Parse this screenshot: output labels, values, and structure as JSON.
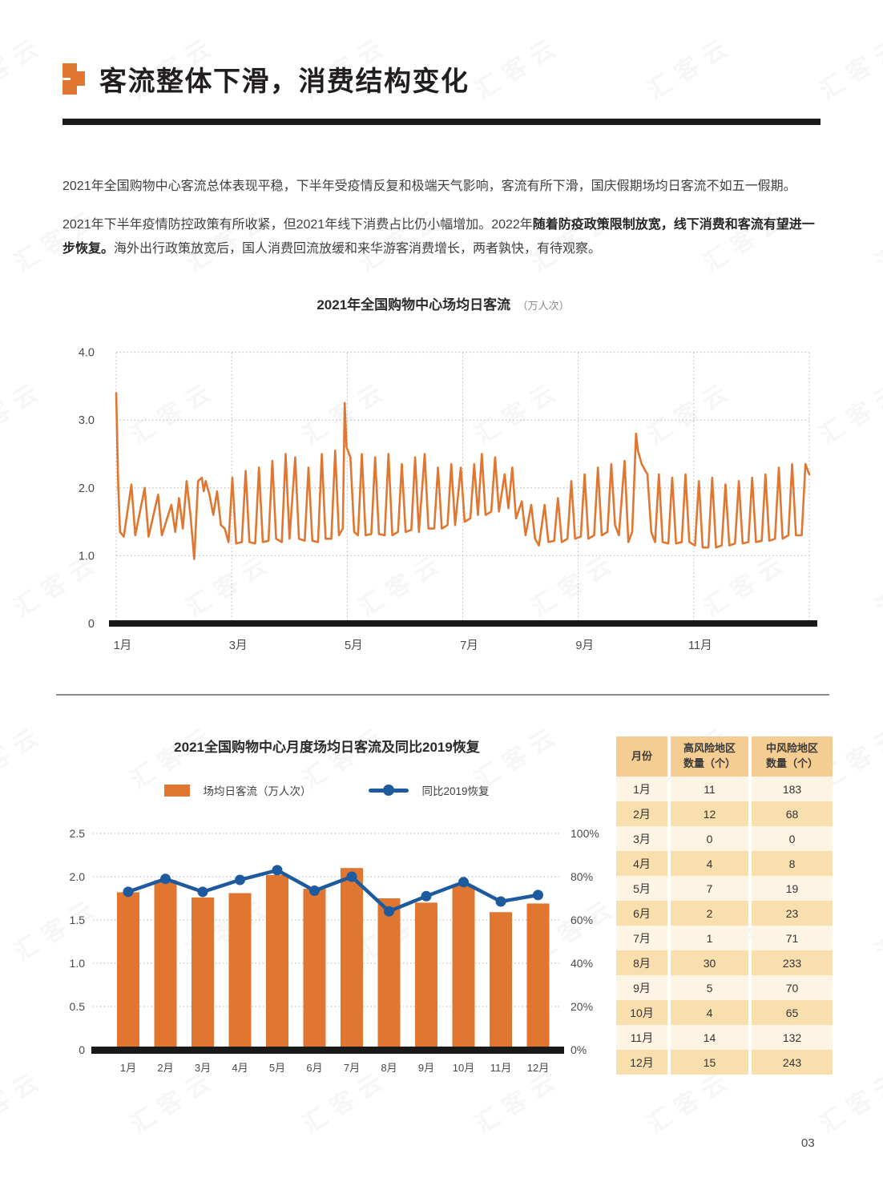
{
  "page": {
    "number": "03",
    "watermark_text": "汇客云"
  },
  "header": {
    "title": "客流整体下滑，消费结构变化"
  },
  "paragraphs": {
    "p1": "2021年全国购物中心客流总体表现平稳，下半年受疫情反复和极端天气影响，客流有所下滑，国庆假期场均日客流不如五一假期。",
    "p2_normal1": "2021年下半年疫情防控政策有所收紧，但2021年线下消费占比仍小幅增加。2022年",
    "p2_bold": "随着防疫政策限制放宽，线下消费和客流有望进一步恢复。",
    "p2_normal2": "海外出行政策放宽后，国人消费回流放缓和来华游客消费增长，两者孰快，有待观察。"
  },
  "colors": {
    "accent_orange": "#E0762F",
    "line_blue": "#1E5B9E",
    "axis_black": "#1A1A1A",
    "grid_gray": "#B5B5B5",
    "tick_text": "#4A4A4A"
  },
  "chart_data": [
    {
      "type": "line",
      "title": "2021年全国购物中心场均日客流",
      "unit": "（万人次）",
      "series_name": "场均日客流",
      "x_tick_labels": [
        "1月",
        "3月",
        "5月",
        "7月",
        "9月",
        "11月"
      ],
      "y_tick_labels": [
        "0",
        "1.0",
        "2.0",
        "3.0",
        "4.0"
      ],
      "ylim": [
        0,
        4.0
      ],
      "x_range_days": [
        0,
        364
      ],
      "grid": true,
      "points": [
        [
          0,
          3.4
        ],
        [
          1,
          2.1
        ],
        [
          2,
          1.35
        ],
        [
          4,
          1.28
        ],
        [
          8,
          2.05
        ],
        [
          10,
          1.3
        ],
        [
          15,
          2.0
        ],
        [
          17,
          1.28
        ],
        [
          22,
          1.9
        ],
        [
          24,
          1.3
        ],
        [
          29,
          1.75
        ],
        [
          31,
          1.35
        ],
        [
          33,
          1.85
        ],
        [
          35,
          1.4
        ],
        [
          37,
          2.1
        ],
        [
          39,
          1.6
        ],
        [
          41,
          0.95
        ],
        [
          43,
          2.1
        ],
        [
          45,
          2.15
        ],
        [
          46,
          1.95
        ],
        [
          47,
          2.1
        ],
        [
          49,
          1.9
        ],
        [
          51,
          1.6
        ],
        [
          53,
          1.95
        ],
        [
          55,
          1.45
        ],
        [
          57,
          1.4
        ],
        [
          59,
          1.2
        ],
        [
          61,
          2.15
        ],
        [
          63,
          1.18
        ],
        [
          66,
          1.2
        ],
        [
          68,
          2.25
        ],
        [
          70,
          1.2
        ],
        [
          73,
          1.18
        ],
        [
          75,
          2.3
        ],
        [
          77,
          1.2
        ],
        [
          80,
          1.22
        ],
        [
          82,
          2.4
        ],
        [
          84,
          1.25
        ],
        [
          87,
          1.2
        ],
        [
          89,
          2.5
        ],
        [
          91,
          1.25
        ],
        [
          94,
          2.45
        ],
        [
          96,
          1.25
        ],
        [
          99,
          1.22
        ],
        [
          101,
          2.3
        ],
        [
          103,
          1.22
        ],
        [
          106,
          1.2
        ],
        [
          108,
          2.5
        ],
        [
          110,
          1.25
        ],
        [
          113,
          1.25
        ],
        [
          115,
          2.55
        ],
        [
          117,
          1.3
        ],
        [
          119,
          1.4
        ],
        [
          120,
          3.25
        ],
        [
          121,
          2.6
        ],
        [
          123,
          2.45
        ],
        [
          125,
          1.35
        ],
        [
          127,
          1.3
        ],
        [
          129,
          2.5
        ],
        [
          131,
          1.3
        ],
        [
          134,
          1.32
        ],
        [
          136,
          2.45
        ],
        [
          138,
          1.32
        ],
        [
          141,
          1.3
        ],
        [
          143,
          2.5
        ],
        [
          145,
          1.3
        ],
        [
          148,
          1.35
        ],
        [
          150,
          2.35
        ],
        [
          152,
          1.35
        ],
        [
          155,
          1.38
        ],
        [
          157,
          2.45
        ],
        [
          159,
          1.35
        ],
        [
          162,
          2.5
        ],
        [
          164,
          1.4
        ],
        [
          167,
          1.4
        ],
        [
          169,
          2.3
        ],
        [
          171,
          1.4
        ],
        [
          174,
          1.45
        ],
        [
          176,
          2.35
        ],
        [
          178,
          1.45
        ],
        [
          181,
          2.3
        ],
        [
          183,
          1.5
        ],
        [
          186,
          1.55
        ],
        [
          188,
          2.35
        ],
        [
          190,
          1.6
        ],
        [
          192,
          2.5
        ],
        [
          194,
          1.6
        ],
        [
          197,
          1.65
        ],
        [
          199,
          2.45
        ],
        [
          201,
          1.65
        ],
        [
          204,
          2.2
        ],
        [
          206,
          1.7
        ],
        [
          208,
          2.3
        ],
        [
          210,
          1.55
        ],
        [
          213,
          1.8
        ],
        [
          215,
          1.3
        ],
        [
          218,
          1.75
        ],
        [
          220,
          1.25
        ],
        [
          222,
          1.15
        ],
        [
          225,
          1.75
        ],
        [
          227,
          1.2
        ],
        [
          230,
          1.22
        ],
        [
          232,
          1.85
        ],
        [
          234,
          1.2
        ],
        [
          237,
          1.25
        ],
        [
          239,
          2.1
        ],
        [
          241,
          1.25
        ],
        [
          244,
          1.28
        ],
        [
          246,
          2.2
        ],
        [
          248,
          1.25
        ],
        [
          251,
          1.3
        ],
        [
          253,
          2.3
        ],
        [
          255,
          1.3
        ],
        [
          258,
          1.35
        ],
        [
          260,
          2.35
        ],
        [
          262,
          1.45
        ],
        [
          264,
          1.3
        ],
        [
          267,
          2.4
        ],
        [
          269,
          1.2
        ],
        [
          271,
          1.35
        ],
        [
          273,
          2.8
        ],
        [
          274,
          2.55
        ],
        [
          276,
          2.35
        ],
        [
          278,
          2.25
        ],
        [
          279,
          2.2
        ],
        [
          281,
          1.35
        ],
        [
          283,
          1.2
        ],
        [
          285,
          2.2
        ],
        [
          287,
          1.2
        ],
        [
          290,
          1.18
        ],
        [
          292,
          2.15
        ],
        [
          294,
          1.18
        ],
        [
          297,
          1.2
        ],
        [
          299,
          2.2
        ],
        [
          301,
          1.2
        ],
        [
          304,
          1.15
        ],
        [
          306,
          2.1
        ],
        [
          308,
          1.12
        ],
        [
          311,
          1.12
        ],
        [
          313,
          2.15
        ],
        [
          315,
          1.12
        ],
        [
          318,
          1.15
        ],
        [
          320,
          2.05
        ],
        [
          322,
          1.15
        ],
        [
          325,
          1.18
        ],
        [
          327,
          2.1
        ],
        [
          329,
          1.18
        ],
        [
          332,
          1.2
        ],
        [
          334,
          2.15
        ],
        [
          336,
          1.2
        ],
        [
          339,
          1.22
        ],
        [
          341,
          2.2
        ],
        [
          343,
          1.22
        ],
        [
          346,
          1.25
        ],
        [
          348,
          2.3
        ],
        [
          350,
          1.25
        ],
        [
          353,
          1.3
        ],
        [
          355,
          2.35
        ],
        [
          357,
          1.3
        ],
        [
          360,
          1.3
        ],
        [
          362,
          2.35
        ],
        [
          364,
          2.2
        ]
      ]
    },
    {
      "type": "combo_bar_line",
      "title": "2021全国购物中心月度场均日客流及同比2019恢复",
      "categories": [
        "1月",
        "2月",
        "3月",
        "4月",
        "5月",
        "6月",
        "7月",
        "8月",
        "9月",
        "10月",
        "11月",
        "12月"
      ],
      "bar_series": {
        "name": "场均日客流（万人次）",
        "axis": "left",
        "values": [
          1.82,
          1.96,
          1.76,
          1.81,
          2.02,
          1.86,
          2.1,
          1.75,
          1.7,
          1.9,
          1.59,
          1.69
        ]
      },
      "line_series": {
        "name": "同比2019恢复",
        "axis": "right",
        "values_pct": [
          73,
          79,
          73,
          78.5,
          83,
          73.5,
          80,
          64,
          71,
          77.5,
          68.5,
          71.5
        ]
      },
      "left_axis": {
        "tick_labels": [
          "0",
          "0.5",
          "1.0",
          "1.5",
          "2.0",
          "2.5"
        ],
        "ylim": [
          0,
          2.5
        ]
      },
      "right_axis": {
        "tick_labels": [
          "0%",
          "20%",
          "40%",
          "60%",
          "80%",
          "100%"
        ],
        "ylim_pct": [
          0,
          100
        ]
      },
      "grid": true,
      "legend_position": "top"
    },
    {
      "type": "table",
      "headers": [
        "月份",
        "高风险地区\n数量（个）",
        "中风险地区\n数量（个）"
      ],
      "rows": [
        [
          "1月",
          "11",
          "183"
        ],
        [
          "2月",
          "12",
          "68"
        ],
        [
          "3月",
          "0",
          "0"
        ],
        [
          "4月",
          "4",
          "8"
        ],
        [
          "5月",
          "7",
          "19"
        ],
        [
          "6月",
          "2",
          "23"
        ],
        [
          "7月",
          "1",
          "71"
        ],
        [
          "8月",
          "30",
          "233"
        ],
        [
          "9月",
          "5",
          "70"
        ],
        [
          "10月",
          "4",
          "65"
        ],
        [
          "11月",
          "14",
          "132"
        ],
        [
          "12月",
          "15",
          "243"
        ]
      ]
    }
  ]
}
